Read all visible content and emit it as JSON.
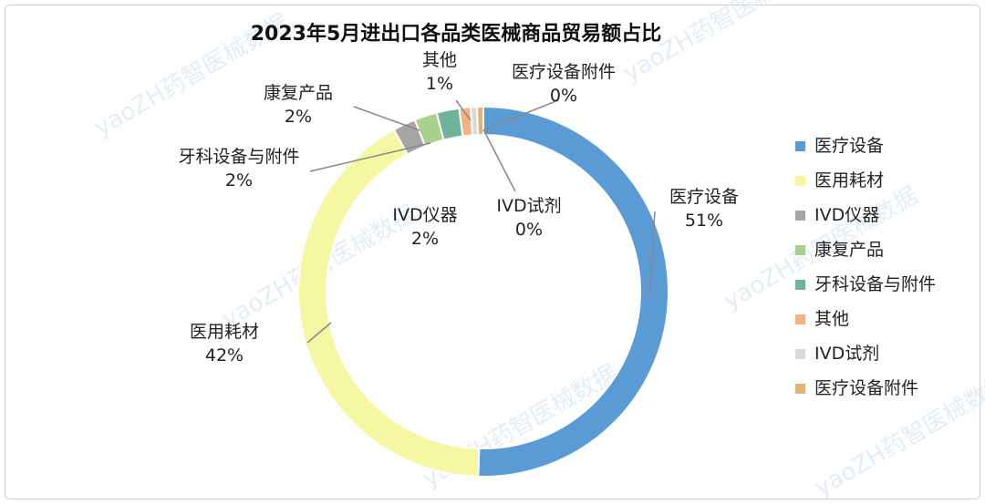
{
  "chart_data": {
    "type": "pie",
    "subtype": "donut",
    "title": "2023年5月进出口各品类医械商品贸易额占比",
    "legend_position": "right",
    "watermark": "yaoZH药智医械数据",
    "slices": [
      {
        "name": "医疗设备",
        "value": 51,
        "label": "51%",
        "color": "#5b9bd5"
      },
      {
        "name": "医用耗材",
        "value": 42,
        "label": "42%",
        "color": "#f5f7a3"
      },
      {
        "name": "IVD仪器",
        "value": 2,
        "label": "2%",
        "color": "#a5a5a5"
      },
      {
        "name": "康复产品",
        "value": 2,
        "label": "2%",
        "color": "#a9d18e"
      },
      {
        "name": "牙科设备与附件",
        "value": 2,
        "label": "2%",
        "color": "#6fb39a"
      },
      {
        "name": "其他",
        "value": 1,
        "label": "1%",
        "color": "#f4b183"
      },
      {
        "name": "IVD试剂",
        "value": 0,
        "label": "0%",
        "color": "#d9d9d9"
      },
      {
        "name": "医疗设备附件",
        "value": 0,
        "label": "0%",
        "color": "#dcb47c"
      }
    ]
  }
}
